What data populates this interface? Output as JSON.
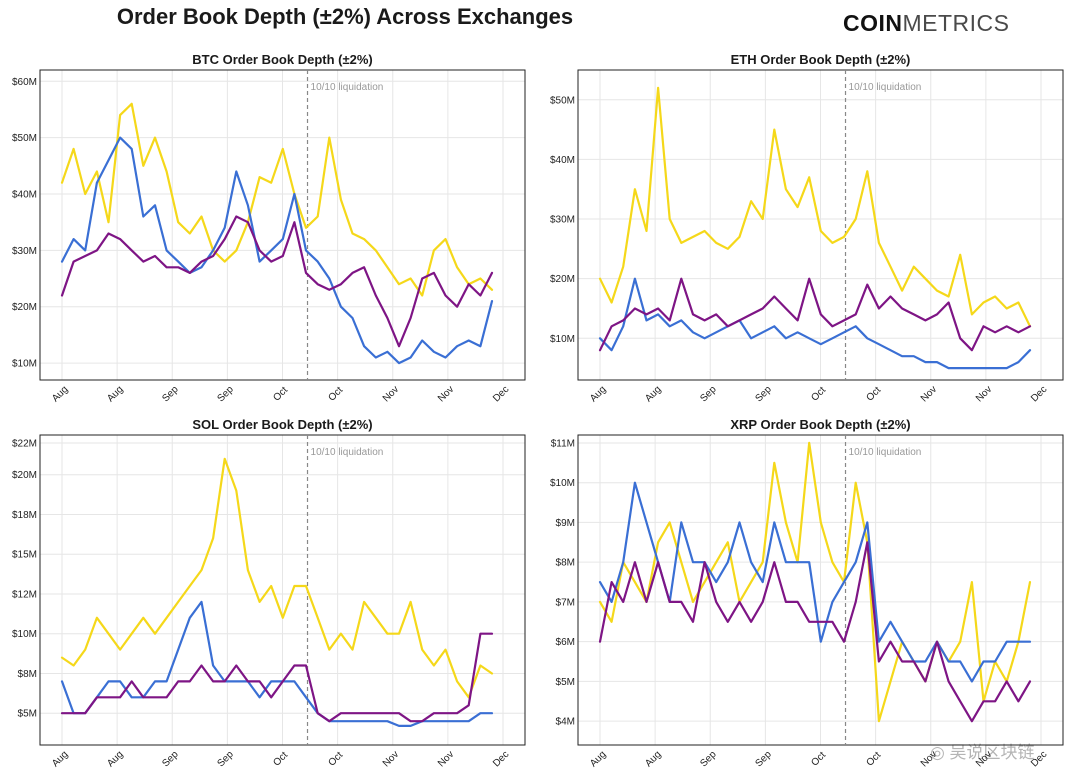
{
  "title": "Order Book Depth (±2%) Across Exchanges",
  "brand": {
    "bold": "COIN",
    "light": "METRICS"
  },
  "watermark": "◎ 吴说区块链",
  "colors": {
    "yellow": "#f5d81a",
    "blue": "#3a6fd4",
    "purple": "#7e1585",
    "grid": "#e6e6e6",
    "vline": "#888888"
  },
  "chart_data": [
    {
      "id": "btc",
      "type": "line",
      "title": "BTC Order Book Depth (±2%)",
      "x_ticks": [
        "Aug",
        "Aug",
        "Sep",
        "Sep",
        "Oct",
        "Oct",
        "Nov",
        "Nov",
        "Dec"
      ],
      "y_ticks": [
        "$10M",
        "$20M",
        "$30M",
        "$40M",
        "$50M",
        "$60M"
      ],
      "y_tick_values": [
        10,
        20,
        30,
        40,
        50,
        60
      ],
      "ylim": [
        7,
        62
      ],
      "unit": "M USD",
      "annotation": {
        "label": "10/10 liquidation",
        "x_frac": 0.571
      },
      "series": [
        {
          "name": "yellow",
          "color": "#f5d81a",
          "values": [
            42,
            48,
            40,
            44,
            35,
            54,
            56,
            45,
            50,
            44,
            35,
            33,
            36,
            30,
            28,
            30,
            35,
            43,
            42,
            48,
            40,
            34,
            36,
            50,
            39,
            33,
            32,
            30,
            27,
            24,
            25,
            22,
            30,
            32,
            27,
            24,
            25,
            23
          ]
        },
        {
          "name": "blue",
          "color": "#3a6fd4",
          "values": [
            28,
            32,
            30,
            42,
            46,
            50,
            48,
            36,
            38,
            30,
            28,
            26,
            27,
            30,
            34,
            44,
            38,
            28,
            30,
            32,
            40,
            30,
            28,
            25,
            20,
            18,
            13,
            11,
            12,
            10,
            11,
            14,
            12,
            11,
            13,
            14,
            13,
            21
          ]
        },
        {
          "name": "purple",
          "color": "#7e1585",
          "values": [
            22,
            28,
            29,
            30,
            33,
            32,
            30,
            28,
            29,
            27,
            27,
            26,
            28,
            29,
            32,
            36,
            35,
            30,
            28,
            29,
            35,
            26,
            24,
            23,
            24,
            26,
            27,
            22,
            18,
            13,
            18,
            25,
            26,
            22,
            20,
            24,
            22,
            26
          ]
        }
      ]
    },
    {
      "id": "eth",
      "type": "line",
      "title": "ETH Order Book Depth (±2%)",
      "x_ticks": [
        "Aug",
        "Aug",
        "Sep",
        "Sep",
        "Oct",
        "Oct",
        "Nov",
        "Nov",
        "Dec"
      ],
      "y_ticks": [
        "$10M",
        "$20M",
        "$30M",
        "$40M",
        "$50M"
      ],
      "y_tick_values": [
        10,
        20,
        30,
        40,
        50
      ],
      "ylim": [
        3,
        55
      ],
      "unit": "M USD",
      "annotation": {
        "label": "10/10 liquidation",
        "x_frac": 0.571
      },
      "series": [
        {
          "name": "yellow",
          "color": "#f5d81a",
          "values": [
            20,
            16,
            22,
            35,
            28,
            52,
            30,
            26,
            27,
            28,
            26,
            25,
            27,
            33,
            30,
            45,
            35,
            32,
            37,
            28,
            26,
            27,
            30,
            38,
            26,
            22,
            18,
            22,
            20,
            18,
            17,
            24,
            14,
            16,
            17,
            15,
            16,
            12
          ]
        },
        {
          "name": "blue",
          "color": "#3a6fd4",
          "values": [
            10,
            8,
            12,
            20,
            13,
            14,
            12,
            13,
            11,
            10,
            11,
            12,
            13,
            10,
            11,
            12,
            10,
            11,
            10,
            9,
            10,
            11,
            12,
            10,
            9,
            8,
            7,
            7,
            6,
            6,
            5,
            5,
            5,
            5,
            5,
            5,
            6,
            8
          ]
        },
        {
          "name": "purple",
          "color": "#7e1585",
          "values": [
            8,
            12,
            13,
            15,
            14,
            15,
            13,
            20,
            14,
            13,
            14,
            12,
            13,
            14,
            15,
            17,
            15,
            13,
            20,
            14,
            12,
            13,
            14,
            19,
            15,
            17,
            15,
            14,
            13,
            14,
            16,
            10,
            8,
            12,
            11,
            12,
            11,
            12
          ]
        }
      ]
    },
    {
      "id": "sol",
      "type": "line",
      "title": "SOL Order Book Depth (±2%)",
      "x_ticks": [
        "Aug",
        "Aug",
        "Sep",
        "Sep",
        "Oct",
        "Oct",
        "Nov",
        "Nov",
        "Dec"
      ],
      "y_ticks": [
        "$5M",
        "$8M",
        "$10M",
        "$12M",
        "$15M",
        "$18M",
        "$20M",
        "$22M"
      ],
      "y_tick_values": [
        5,
        7.5,
        10,
        12.5,
        15,
        17.5,
        20,
        22
      ],
      "ylim": [
        3,
        22.5
      ],
      "unit": "M USD",
      "annotation": {
        "label": "10/10 liquidation",
        "x_frac": 0.571
      },
      "series": [
        {
          "name": "yellow",
          "color": "#f5d81a",
          "values": [
            8.5,
            8,
            9,
            11,
            10,
            9,
            10,
            11,
            10,
            11,
            12,
            13,
            14,
            16,
            21,
            19,
            14,
            12,
            13,
            11,
            13,
            13,
            11,
            9,
            10,
            9,
            12,
            11,
            10,
            10,
            12,
            9,
            8,
            9,
            7,
            6,
            8,
            7.5
          ]
        },
        {
          "name": "blue",
          "color": "#3a6fd4",
          "values": [
            7,
            5,
            5,
            6,
            7,
            7,
            6,
            6,
            7,
            7,
            9,
            11,
            12,
            8,
            7,
            7,
            7,
            6,
            7,
            7,
            7,
            6,
            5,
            4.5,
            4.5,
            4.5,
            4.5,
            4.5,
            4.5,
            4.2,
            4.2,
            4.5,
            4.5,
            4.5,
            4.5,
            4.5,
            5,
            5
          ]
        },
        {
          "name": "purple",
          "color": "#7e1585",
          "values": [
            5,
            5,
            5,
            6,
            6,
            6,
            7,
            6,
            6,
            6,
            7,
            7,
            8,
            7,
            7,
            8,
            7,
            7,
            6,
            7,
            8,
            8,
            5,
            4.5,
            5,
            5,
            5,
            5,
            5,
            5,
            4.5,
            4.5,
            5,
            5,
            5,
            5.5,
            10,
            10
          ]
        }
      ]
    },
    {
      "id": "xrp",
      "type": "line",
      "title": "XRP Order Book Depth (±2%)",
      "x_ticks": [
        "Aug",
        "Aug",
        "Sep",
        "Sep",
        "Oct",
        "Oct",
        "Nov",
        "Nov",
        "Dec"
      ],
      "y_ticks": [
        "$4M",
        "$5M",
        "$6M",
        "$7M",
        "$8M",
        "$9M",
        "$10M",
        "$11M"
      ],
      "y_tick_values": [
        4,
        5,
        6,
        7,
        8,
        9,
        10,
        11
      ],
      "ylim": [
        3.4,
        11.2
      ],
      "unit": "M USD",
      "annotation": {
        "label": "10/10 liquidation",
        "x_frac": 0.571
      },
      "series": [
        {
          "name": "yellow",
          "color": "#f5d81a",
          "values": [
            7,
            6.5,
            8,
            7.5,
            7,
            8.5,
            9,
            8,
            7,
            7.5,
            8,
            8.5,
            7,
            7.5,
            8,
            10.5,
            9,
            8,
            11,
            9,
            8,
            7.5,
            10,
            8.5,
            4,
            5,
            6,
            5.5,
            5,
            6,
            5.5,
            6,
            7.5,
            4.5,
            5.5,
            5,
            6,
            7.5
          ]
        },
        {
          "name": "blue",
          "color": "#3a6fd4",
          "values": [
            7.5,
            7,
            8,
            10,
            9,
            8,
            7,
            9,
            8,
            8,
            7.5,
            8,
            9,
            8,
            7.5,
            9,
            8,
            8,
            8,
            6,
            7,
            7.5,
            8,
            9,
            6,
            6.5,
            6,
            5.5,
            5.5,
            6,
            5.5,
            5.5,
            5,
            5.5,
            5.5,
            6,
            6,
            6
          ]
        },
        {
          "name": "purple",
          "color": "#7e1585",
          "values": [
            6,
            7.5,
            7,
            8,
            7,
            8,
            7,
            7,
            6.5,
            8,
            7,
            6.5,
            7,
            6.5,
            7,
            8,
            7,
            7,
            6.5,
            6.5,
            6.5,
            6,
            7,
            8.5,
            5.5,
            6,
            5.5,
            5.5,
            5,
            6,
            5,
            4.5,
            4,
            4.5,
            4.5,
            5,
            4.5,
            5
          ]
        }
      ]
    }
  ]
}
